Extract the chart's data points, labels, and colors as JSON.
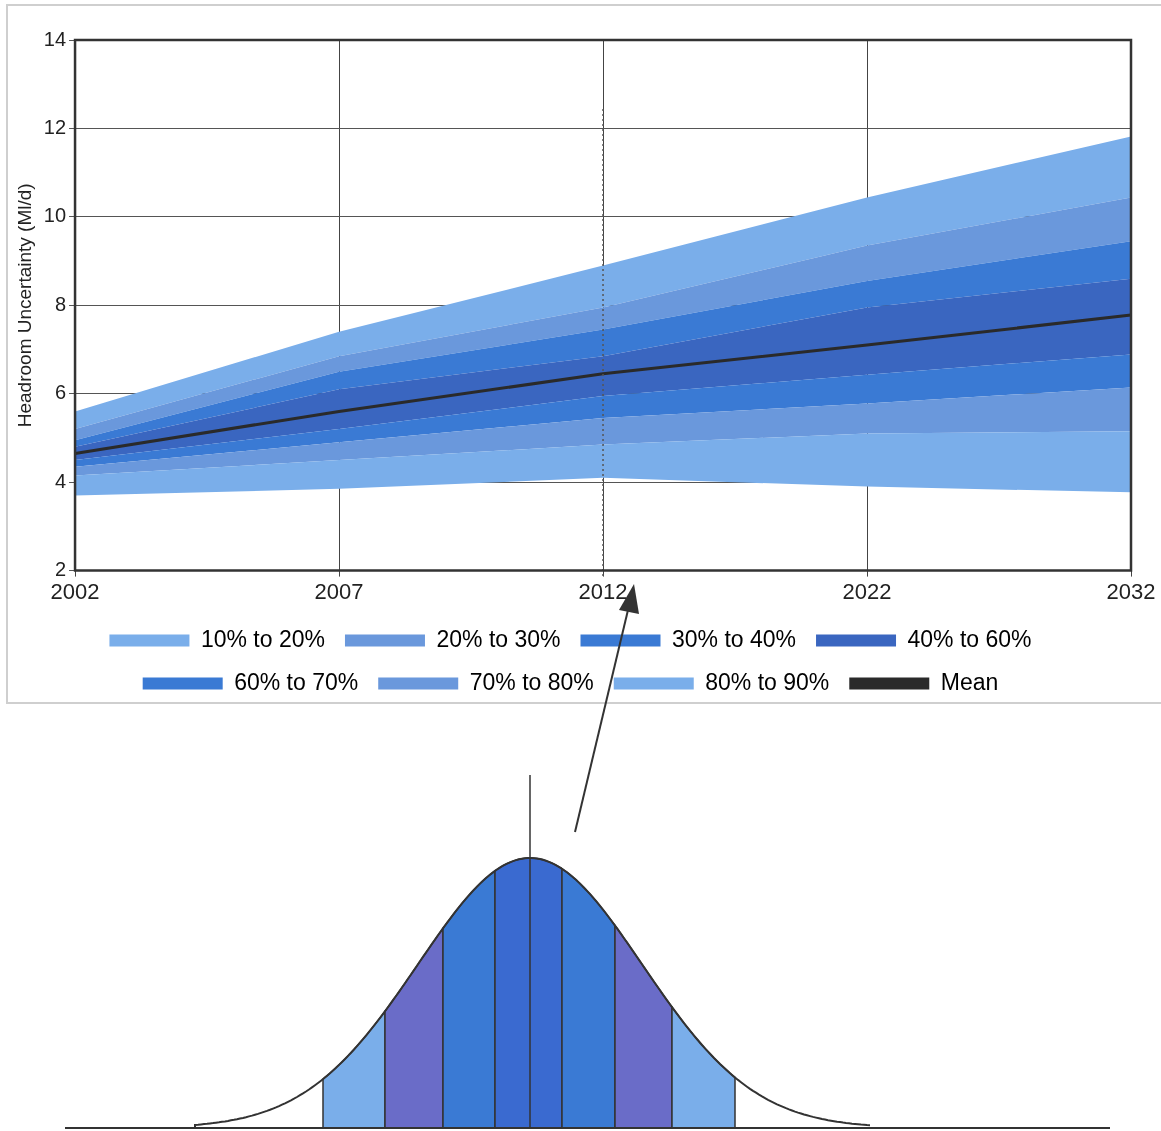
{
  "chart_data": {
    "type": "area",
    "ylabel": "Headroom Uncertainty (Ml/d)",
    "categories": [
      "2002",
      "2007",
      "2012",
      "2022",
      "2032"
    ],
    "series": [
      {
        "name": "10% to 20%",
        "color": "#7aaeea",
        "type": "area",
        "values": [
          null,
          null,
          null,
          null,
          null
        ],
        "lower": [
          3.7,
          3.85,
          4.1,
          3.9,
          3.77
        ],
        "upper": [
          4.15,
          4.5,
          4.85,
          5.1,
          5.15
        ]
      },
      {
        "name": "20% to 30%",
        "color": "#6a98dc",
        "type": "area",
        "values": [
          null,
          null,
          null,
          null,
          null
        ],
        "lower": [
          4.15,
          4.5,
          4.85,
          5.1,
          5.15
        ],
        "upper": [
          4.35,
          4.9,
          5.45,
          5.78,
          6.14
        ]
      },
      {
        "name": "30% to 40%",
        "color": "#3a7ad4",
        "type": "area",
        "values": [
          null,
          null,
          null,
          null,
          null
        ],
        "lower": [
          4.35,
          4.9,
          5.45,
          5.78,
          6.14
        ],
        "upper": [
          4.5,
          5.2,
          5.95,
          6.43,
          6.89
        ]
      },
      {
        "name": "40% to 60%",
        "color": "#3a66c0",
        "type": "area",
        "values": [
          null,
          null,
          null,
          null,
          null
        ],
        "lower": [
          4.5,
          5.2,
          5.95,
          6.43,
          6.89
        ],
        "upper": [
          4.8,
          6.1,
          6.85,
          7.95,
          8.6
        ]
      },
      {
        "name": "60% to 70%",
        "color": "#3a7ad4",
        "type": "area",
        "values": [
          null,
          null,
          null,
          null,
          null
        ],
        "lower": [
          4.8,
          6.1,
          6.85,
          7.95,
          8.6
        ],
        "upper": [
          4.95,
          6.5,
          7.45,
          8.55,
          9.45
        ]
      },
      {
        "name": "70% to 80%",
        "color": "#6a98dc",
        "type": "area",
        "values": [
          null,
          null,
          null,
          null,
          null
        ],
        "lower": [
          4.95,
          6.5,
          7.45,
          8.55,
          9.45
        ],
        "upper": [
          5.2,
          6.85,
          7.95,
          9.35,
          10.44
        ]
      },
      {
        "name": "80% to 90%",
        "color": "#7aaeea",
        "type": "area",
        "values": [
          null,
          null,
          null,
          null,
          null
        ],
        "lower": [
          5.2,
          6.85,
          7.95,
          9.35,
          10.44
        ],
        "upper": [
          5.6,
          7.4,
          8.9,
          10.44,
          11.82
        ]
      },
      {
        "name": "Mean",
        "color": "#2a2a2a",
        "type": "line",
        "values": [
          4.65,
          5.6,
          6.45,
          7.1,
          7.78
        ]
      }
    ],
    "ylim": [
      2,
      14
    ],
    "yticks": [
      2,
      4,
      6,
      8,
      10,
      12,
      14
    ],
    "grid": true,
    "legend": "bottom",
    "marker": "none",
    "line_style": "solid",
    "ref_lines": [
      {
        "axis": "x",
        "value": "2012",
        "line_style": "dotted",
        "color": "#555555"
      }
    ]
  }
}
